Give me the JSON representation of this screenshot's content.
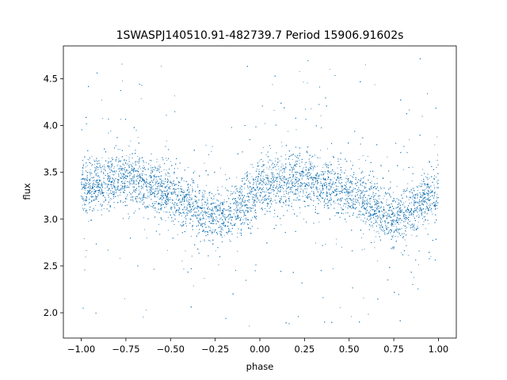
{
  "chart_data": {
    "type": "scatter",
    "title": "1SWASPJ140510.91-482739.7 Period 15906.91602s",
    "xlabel": "phase",
    "ylabel": "flux",
    "xlim": [
      -1.1,
      1.1
    ],
    "ylim": [
      1.73,
      4.85
    ],
    "xticks": [
      -1.0,
      -0.75,
      -0.5,
      -0.25,
      0.0,
      0.25,
      0.5,
      0.75,
      1.0
    ],
    "xtick_labels": [
      "−1.00",
      "−0.75",
      "−0.50",
      "−0.25",
      "0.00",
      "0.25",
      "0.50",
      "0.75",
      "1.00"
    ],
    "yticks": [
      2.0,
      2.5,
      3.0,
      3.5,
      4.0,
      4.5
    ],
    "ytick_labels": [
      "2.0",
      "2.5",
      "3.0",
      "3.5",
      "4.0",
      "4.5"
    ],
    "grid": false,
    "legend": "none",
    "marker_color": "#1f77b4",
    "series": [
      {
        "phase": [
          -1.0,
          -0.9,
          -0.8,
          -0.75,
          -0.7,
          -0.6,
          -0.5,
          -0.4,
          -0.3,
          -0.25,
          -0.2,
          -0.1,
          0.0,
          0.1,
          0.2,
          0.25,
          0.3,
          0.4,
          0.5,
          0.6,
          0.7,
          0.75,
          0.8,
          0.9,
          1.0
        ],
        "flux_median": [
          3.3,
          3.38,
          3.43,
          3.44,
          3.43,
          3.36,
          3.27,
          3.17,
          3.05,
          3.01,
          3.02,
          3.17,
          3.3,
          3.38,
          3.43,
          3.44,
          3.43,
          3.36,
          3.27,
          3.17,
          3.05,
          3.01,
          3.02,
          3.17,
          3.3
        ],
        "flux_scatter": 0.14,
        "outlier_range": [
          1.85,
          4.72
        ],
        "n_points_approx": 14000
      }
    ]
  }
}
